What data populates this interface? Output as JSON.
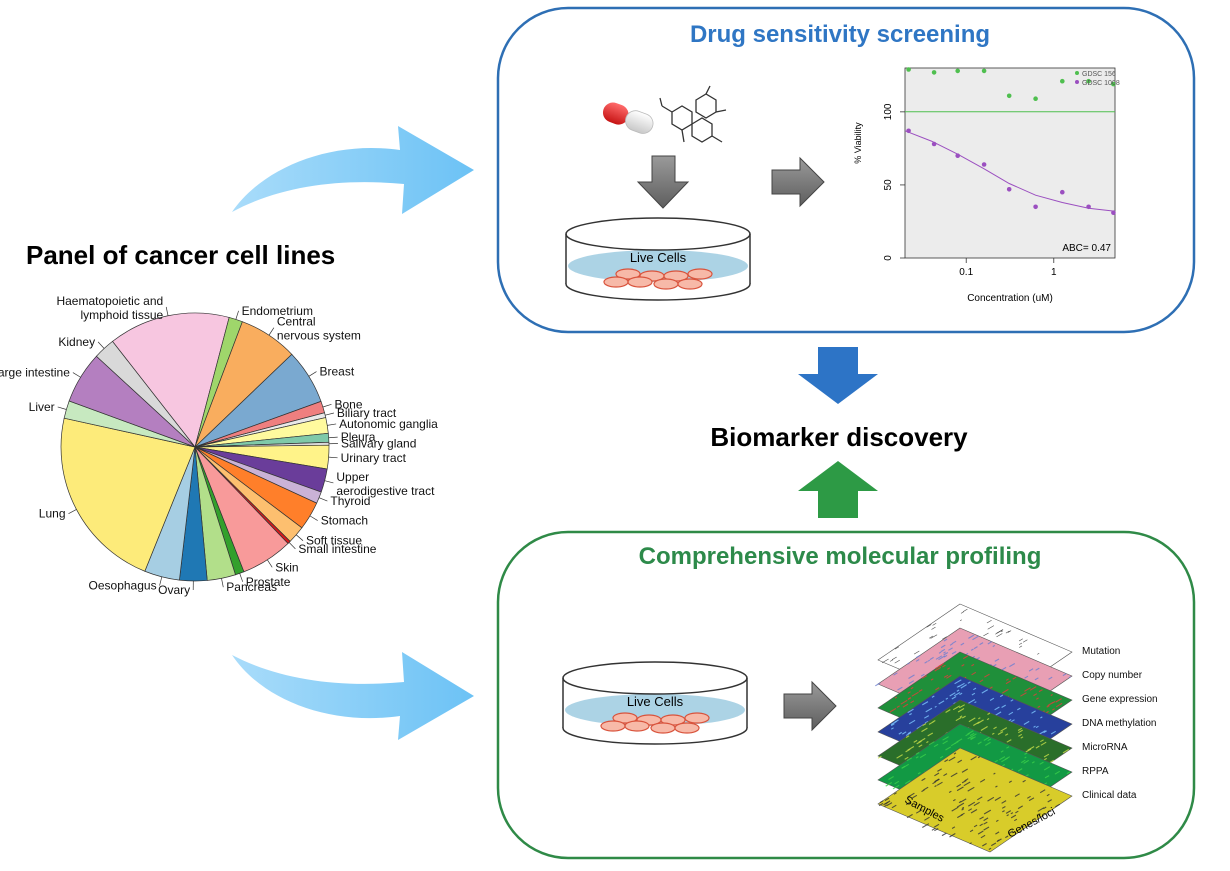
{
  "panel": {
    "title": "Panel of cancer cell lines",
    "tissues": [
      {
        "label": "Haematopoietic and lymphoid tissue",
        "share": 12.4,
        "color": "#f7c6e0"
      },
      {
        "label": "Endometrium",
        "share": 1.4,
        "color": "#9fd66b"
      },
      {
        "label": "Central nervous system",
        "share": 6.0,
        "color": "#f9ad5e"
      },
      {
        "label": "Breast",
        "share": 5.6,
        "color": "#7aa9d0"
      },
      {
        "label": "Bone",
        "share": 1.2,
        "color": "#ef7f7f"
      },
      {
        "label": "Biliary tract",
        "share": 0.5,
        "color": "#e9e9e9"
      },
      {
        "label": "Autonomic ganglia",
        "share": 1.6,
        "color": "#fffa9e"
      },
      {
        "label": "Pleura",
        "share": 0.9,
        "color": "#7fc9a9"
      },
      {
        "label": "Salivary gland",
        "share": 0.3,
        "color": "#d9d9d9"
      },
      {
        "label": "Urinary tract",
        "share": 2.4,
        "color": "#fff389"
      },
      {
        "label": "Upper aerodigestive tract",
        "share": 2.4,
        "color": "#6a3d9a"
      },
      {
        "label": "Thyroid",
        "share": 1.2,
        "color": "#cab2d6"
      },
      {
        "label": "Stomach",
        "share": 2.9,
        "color": "#ff7f2a"
      },
      {
        "label": "Soft tissue",
        "share": 1.8,
        "color": "#fdbf6f"
      },
      {
        "label": "Small intestine",
        "share": 0.3,
        "color": "#d7191c"
      },
      {
        "label": "Skin",
        "share": 5.3,
        "color": "#f89a9a"
      },
      {
        "label": "Prostate",
        "share": 0.9,
        "color": "#33a02c"
      },
      {
        "label": "Pancreas",
        "share": 2.9,
        "color": "#b2df8a"
      },
      {
        "label": "Ovary",
        "share": 2.8,
        "color": "#1f78b4"
      },
      {
        "label": "Oesophagus",
        "share": 3.6,
        "color": "#a6cee3"
      },
      {
        "label": "Lung",
        "share": 18.9,
        "color": "#fdeb7a"
      },
      {
        "label": "Liver",
        "share": 1.8,
        "color": "#c7e9c0"
      },
      {
        "label": "Large intestine",
        "share": 5.3,
        "color": "#b47fc0"
      },
      {
        "label": "Kidney",
        "share": 2.2,
        "color": "#d9d9d9"
      }
    ]
  },
  "drug_screening": {
    "title": "Drug sensitivity screening",
    "dish_label": "Live Cells",
    "border_color": "#2e6fb4",
    "title_color": "#2f76c4"
  },
  "chart_data": {
    "type": "scatter",
    "xlabel": "Concentration (uM)",
    "ylabel": "% Viability",
    "x_scale": "log",
    "xlim": [
      0.02,
      5
    ],
    "ylim": [
      0,
      130
    ],
    "x_ticks": [
      {
        "value": 0.1,
        "label": "0.1"
      },
      {
        "value": 1,
        "label": "1"
      }
    ],
    "y_ticks": [
      {
        "value": 0,
        "label": "0"
      },
      {
        "value": 50,
        "label": "50"
      },
      {
        "value": 100,
        "label": "100"
      }
    ],
    "legend_position": "top-right",
    "annotation": "ABC= 0.47",
    "series": [
      {
        "name": "GDSC 156",
        "color": "#4fbf4f",
        "points": [
          [
            0.022,
            129
          ],
          [
            0.043,
            127
          ],
          [
            0.08,
            128
          ],
          [
            0.16,
            128
          ],
          [
            0.31,
            111
          ],
          [
            0.62,
            109
          ],
          [
            1.25,
            121
          ],
          [
            2.5,
            121
          ],
          [
            4.8,
            119
          ]
        ],
        "fit": [
          [
            0.02,
            100
          ],
          [
            5,
            100
          ]
        ]
      },
      {
        "name": "GDSC 1008",
        "color": "#9b4fc0",
        "points": [
          [
            0.022,
            87
          ],
          [
            0.043,
            78
          ],
          [
            0.08,
            70
          ],
          [
            0.16,
            64
          ],
          [
            0.31,
            47
          ],
          [
            0.62,
            35
          ],
          [
            1.25,
            45
          ],
          [
            2.5,
            35
          ],
          [
            4.8,
            31
          ]
        ],
        "fit": [
          [
            0.02,
            87
          ],
          [
            0.04,
            80
          ],
          [
            0.08,
            71
          ],
          [
            0.16,
            61
          ],
          [
            0.31,
            51
          ],
          [
            0.62,
            43
          ],
          [
            1.25,
            38
          ],
          [
            2.5,
            34
          ],
          [
            5,
            32
          ]
        ]
      }
    ]
  },
  "biomarker": {
    "title": "Biomarker discovery"
  },
  "molecular": {
    "title": "Comprehensive molecular profiling",
    "dish_label": "Live Cells",
    "border_color": "#2f8a47",
    "title_color": "#2d8a4a",
    "layers": [
      {
        "label": "Mutation",
        "color": "#ffffff"
      },
      {
        "label": "Copy number",
        "color": "#e89fb4"
      },
      {
        "label": "Gene expression",
        "color": "#1f8f3a"
      },
      {
        "label": "DNA methylation",
        "color": "#27409c"
      },
      {
        "label": "MicroRNA",
        "color": "#2a6e2a"
      },
      {
        "label": "RPPA",
        "color": "#129944"
      },
      {
        "label": "Clinical data",
        "color": "#d8cc2a"
      }
    ],
    "axis_samples": "Samples",
    "axis_genes": "Genes/loci"
  },
  "colors": {
    "flow_arrow": "#7fcaf5",
    "down_arrow": "#2d74c6",
    "up_arrow": "#2d9a45",
    "gray_arrow": "#7a7a7a"
  }
}
